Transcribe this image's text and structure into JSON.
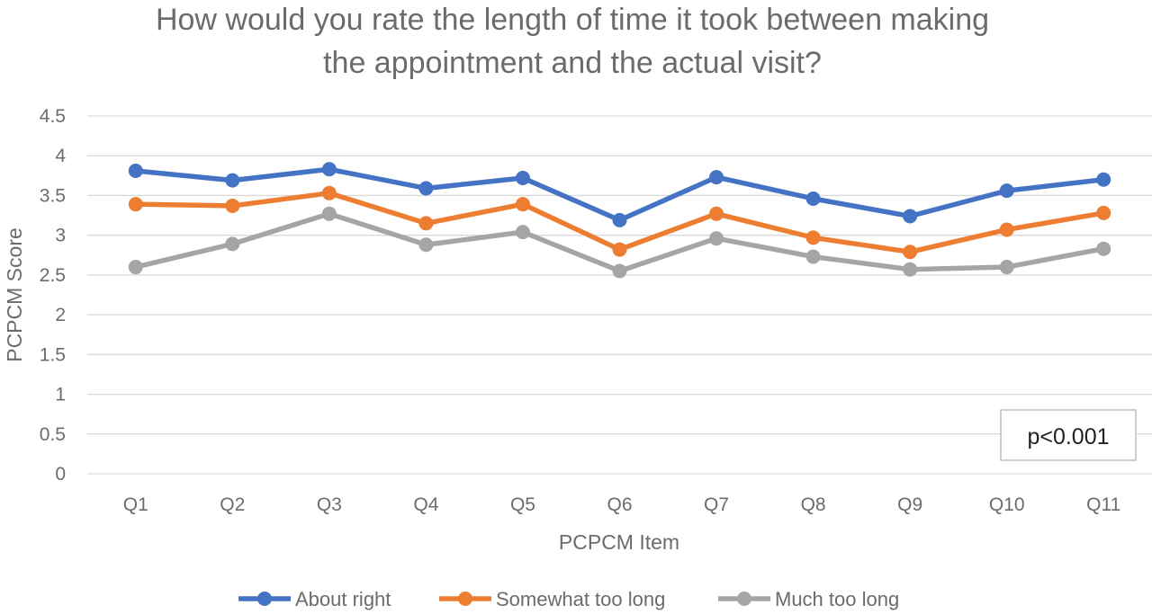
{
  "chart_data": {
    "type": "line",
    "title": "How would you rate the length of time it took between making the appointment and the actual visit?",
    "title_lines": [
      "How would you rate the length of time it took between making",
      "the appointment and the actual visit?"
    ],
    "xlabel": "PCPCM Item",
    "ylabel": "PCPCM Score",
    "categories": [
      "Q1",
      "Q2",
      "Q3",
      "Q4",
      "Q5",
      "Q6",
      "Q7",
      "Q8",
      "Q9",
      "Q10",
      "Q11"
    ],
    "ylim": [
      0,
      4.5
    ],
    "yticks": [
      0,
      0.5,
      1,
      1.5,
      2,
      2.5,
      3,
      3.5,
      4,
      4.5
    ],
    "ytick_labels": [
      "0",
      "0.5",
      "1",
      "1.5",
      "2",
      "2.5",
      "3",
      "3.5",
      "4",
      "4.5"
    ],
    "grid": true,
    "legend_position": "bottom",
    "series": [
      {
        "name": "About right",
        "color": "#4472c4",
        "values": [
          3.81,
          3.69,
          3.83,
          3.59,
          3.72,
          3.19,
          3.73,
          3.46,
          3.24,
          3.56,
          3.7
        ]
      },
      {
        "name": "Somewhat too long",
        "color": "#ed7d31",
        "values": [
          3.39,
          3.37,
          3.53,
          3.15,
          3.39,
          2.82,
          3.27,
          2.97,
          2.79,
          3.07,
          3.28
        ]
      },
      {
        "name": "Much too long",
        "color": "#a5a5a5",
        "values": [
          2.6,
          2.89,
          3.27,
          2.88,
          3.04,
          2.55,
          2.96,
          2.73,
          2.57,
          2.6,
          2.83
        ]
      }
    ],
    "annotation": "p<0.001"
  }
}
